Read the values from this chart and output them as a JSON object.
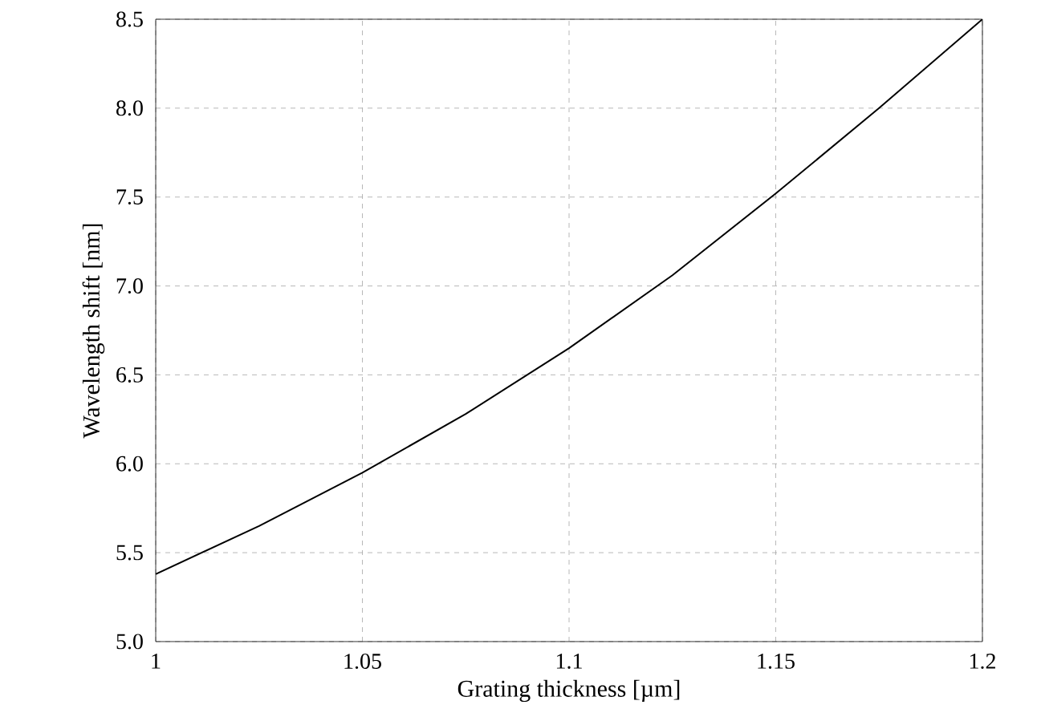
{
  "chart_data": {
    "type": "line",
    "xlabel": "Grating thickness [µm]",
    "ylabel": "Wavelength shift [nm]",
    "x": [
      1,
      1.025,
      1.05,
      1.075,
      1.1,
      1.125,
      1.15,
      1.175,
      1.2
    ],
    "series": [
      {
        "color": "#000000",
        "values": [
          5.38,
          5.65,
          5.95,
          6.28,
          6.65,
          7.06,
          7.52,
          8.0,
          8.5
        ]
      }
    ],
    "xlim": [
      1,
      1.2
    ],
    "ylim": [
      5,
      8.5
    ],
    "xticks": [
      1,
      1.05,
      1.1,
      1.15,
      1.2
    ],
    "yticks": [
      {
        "value": 5,
        "label": "5.0"
      },
      {
        "value": 5.5,
        "label": "5.5"
      },
      {
        "value": 6,
        "label": "6.0"
      },
      {
        "value": 6.5,
        "label": "6.5"
      },
      {
        "value": 7,
        "label": "7.0"
      },
      {
        "value": 7.5,
        "label": "7.5"
      },
      {
        "value": 8,
        "label": "8.0"
      },
      {
        "value": 8.5,
        "label": "8.5"
      }
    ],
    "grid": true,
    "marker": "none",
    "line_style": "solid"
  }
}
